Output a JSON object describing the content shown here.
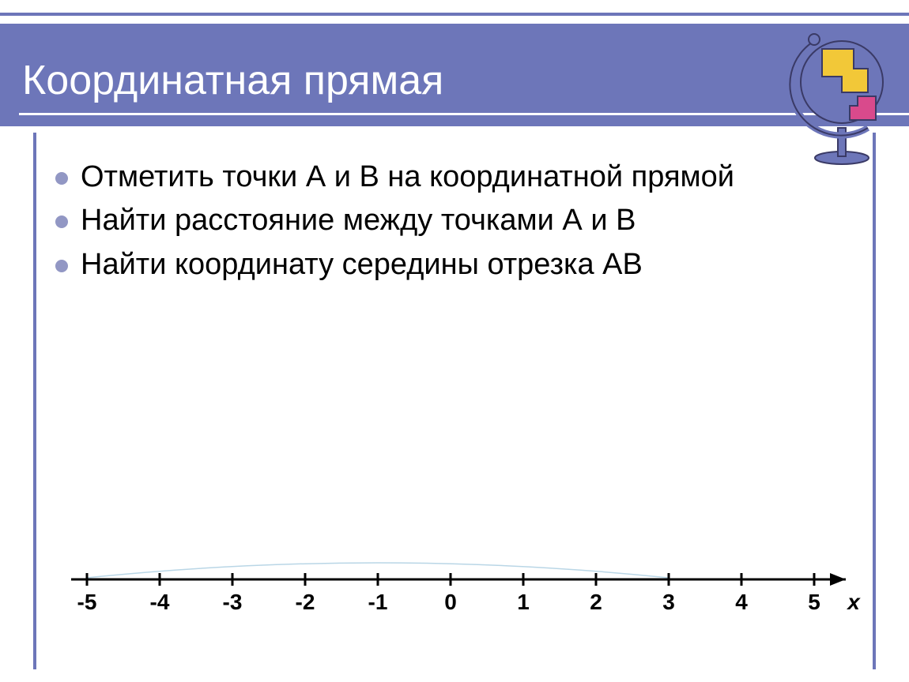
{
  "slide": {
    "title": "Координатная прямая",
    "header_bg": "#6d76b9",
    "header_text_color": "#ffffff",
    "rule_color": "#6d76b9",
    "bullets": [
      "Отметить точки А и В на координатной прямой",
      "Найти расстояние между точками А и В",
      "Найти координату середины отрезка АВ"
    ],
    "bullet_color": "#9297c4",
    "text_color": "#000000",
    "title_fontsize": 52,
    "body_fontsize": 38
  },
  "numberline": {
    "type": "numberline",
    "xmin": -5,
    "xmax": 5,
    "labels": [
      "-5",
      "-4",
      "-3",
      "-2",
      "-1",
      "0",
      "1",
      "2",
      "3",
      "4",
      "5"
    ],
    "axis_label": "x",
    "axis_color": "#000000",
    "tick_height": 16,
    "label_fontsize": 28,
    "label_fontweight": "bold",
    "label_fontstyle_last": "italic",
    "arc": {
      "from": -5,
      "to": 3,
      "color": "#b9d6e6",
      "stroke_width": 1.5
    }
  },
  "decor": {
    "globe_base_color": "#6d76b9",
    "globe_shape1_color": "#f2c838",
    "globe_shape2_color": "#d94a8c",
    "globe_outline": "#3a3a66"
  }
}
